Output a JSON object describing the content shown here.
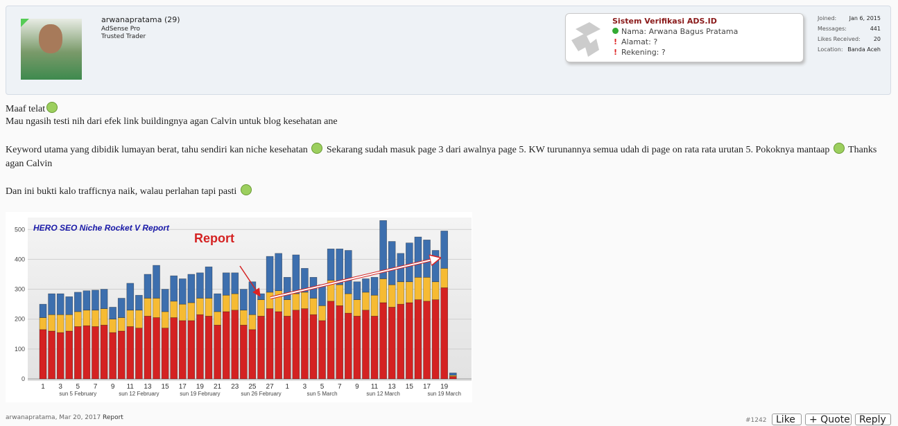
{
  "user": {
    "name": "arwanapratama",
    "count": "(29)",
    "titles": [
      "AdSense Pro",
      "Trusted Trader"
    ]
  },
  "verification": {
    "title": "Sistem Verifikasi ADS.ID",
    "lines": [
      "Nama: Arwana Bagus Pratama",
      "Alamat: ?",
      "Rekening: ?"
    ]
  },
  "stats": [
    {
      "label": "Joined:",
      "value": "Jan 6, 2015"
    },
    {
      "label": "Messages:",
      "value": 441
    },
    {
      "label": "Likes Received:",
      "value": 20
    },
    {
      "label": "Location:",
      "value": "Banda Aceh"
    }
  ],
  "post": {
    "lines": [
      "Maaf telat",
      "Mau ngasih testi nih dari efek link buildingnya agan Calvin untuk blog kesehatan ane"
    ],
    "paragraph": [
      "Keyword utama yang dibidik lumayan berat, tahu sendiri kan niche kesehatan",
      "Sekarang sudah masuk page 3 dari awalnya page 5. KW turunannya semua udah di page on rata rata urutan 5. Pokoknya mantaap",
      "Thanks agan Calvin"
    ],
    "closing": "Dan ini bukti kalo trafficnya naik, walau perlahan tapi pasti"
  },
  "chart_data": {
    "type": "bar",
    "title": "HERO SEO Niche Rocket V Report",
    "annotation": "Report",
    "categories": [
      "1",
      null,
      "3",
      null,
      "5",
      null,
      "7",
      null,
      "9",
      null,
      "11",
      null,
      "13",
      null,
      "15",
      null,
      "17",
      null,
      "19",
      null,
      "21",
      null,
      "23",
      null,
      "25",
      null,
      "27",
      null,
      "1",
      null,
      "3",
      null,
      "5",
      null,
      "7",
      null,
      "9",
      null,
      "11",
      null,
      "13",
      null,
      "15",
      null,
      "17",
      null,
      "19",
      null
    ],
    "week_labels": [
      null,
      null,
      null,
      null,
      "sun 5 February",
      null,
      null,
      null,
      null,
      null,
      null,
      "sun 12 February",
      null,
      null,
      null,
      null,
      null,
      null,
      "sun 19 February",
      null,
      null,
      null,
      null,
      null,
      null,
      "sun 26 February",
      null,
      null,
      null,
      null,
      null,
      null,
      "sun 5 March",
      null,
      null,
      null,
      null,
      null,
      null,
      "sun 12 March",
      null,
      null,
      null,
      null,
      null,
      null,
      "sun 19 March",
      null
    ],
    "series": [
      {
        "color": "#d42222",
        "values": [
          165,
          160,
          155,
          160,
          175,
          178,
          175,
          180,
          155,
          160,
          175,
          170,
          210,
          205,
          170,
          205,
          195,
          195,
          215,
          210,
          180,
          225,
          230,
          180,
          165,
          210,
          235,
          225,
          210,
          230,
          235,
          215,
          195,
          260,
          245,
          220,
          210,
          230,
          210,
          255,
          240,
          250,
          255,
          265,
          260,
          265,
          305,
          8
        ]
      },
      {
        "color": "#f6bb33",
        "values": [
          40,
          55,
          60,
          55,
          50,
          52,
          55,
          55,
          45,
          45,
          55,
          60,
          60,
          65,
          55,
          55,
          55,
          60,
          55,
          60,
          45,
          55,
          55,
          50,
          50,
          55,
          55,
          70,
          55,
          55,
          55,
          55,
          50,
          70,
          70,
          65,
          55,
          60,
          70,
          80,
          75,
          75,
          70,
          75,
          80,
          60,
          65,
          4
        ]
      },
      {
        "color": "#3d6fae",
        "values": [
          45,
          70,
          70,
          60,
          65,
          65,
          67,
          65,
          40,
          65,
          90,
          50,
          80,
          110,
          75,
          85,
          85,
          95,
          85,
          105,
          60,
          75,
          70,
          70,
          110,
          20,
          120,
          125,
          75,
          130,
          80,
          70,
          70,
          105,
          120,
          145,
          60,
          45,
          60,
          195,
          145,
          95,
          130,
          135,
          125,
          105,
          125,
          8
        ]
      }
    ],
    "stacked": true,
    "ylim": [
      0,
      540
    ],
    "yticks": [
      0,
      100,
      200,
      300,
      400,
      500
    ],
    "grid": true
  },
  "footer": {
    "author": "arwanapratama, Mar 20, 2017",
    "report": "Report",
    "number": "#1242",
    "buttons": [
      "Like",
      "+ Quote",
      "Reply"
    ]
  }
}
